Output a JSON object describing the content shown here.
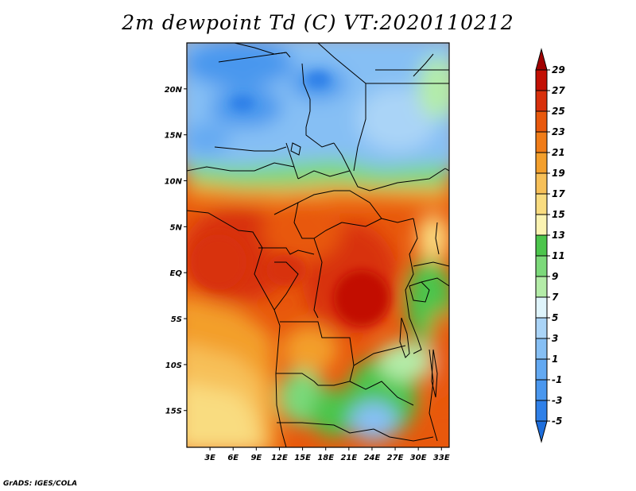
{
  "title": "2m dewpoint Td (C) VT:2020110212",
  "credit": "GrADS: IGES/COLA",
  "map": {
    "lon_range": [
      0,
      34
    ],
    "lat_range": [
      -19,
      25
    ],
    "lon_ticks": [
      {
        "lon": 3,
        "label": "3E"
      },
      {
        "lon": 6,
        "label": "6E"
      },
      {
        "lon": 9,
        "label": "9E"
      },
      {
        "lon": 12,
        "label": "12E"
      },
      {
        "lon": 15,
        "label": "15E"
      },
      {
        "lon": 18,
        "label": "18E"
      },
      {
        "lon": 21,
        "label": "21E"
      },
      {
        "lon": 24,
        "label": "24E"
      },
      {
        "lon": 27,
        "label": "27E"
      },
      {
        "lon": 30,
        "label": "30E"
      },
      {
        "lon": 33,
        "label": "33E"
      }
    ],
    "lat_ticks": [
      {
        "lat": 20,
        "label": "20N"
      },
      {
        "lat": 15,
        "label": "15N"
      },
      {
        "lat": 10,
        "label": "10N"
      },
      {
        "lat": 5,
        "label": "5N"
      },
      {
        "lat": 0,
        "label": "EQ"
      },
      {
        "lat": -5,
        "label": "5S"
      },
      {
        "lat": -10,
        "label": "10S"
      },
      {
        "lat": -15,
        "label": "15S"
      }
    ]
  },
  "colorbar": {
    "levels": [
      "-5",
      "-3",
      "-1",
      "1",
      "3",
      "5",
      "7",
      "9",
      "11",
      "13",
      "15",
      "17",
      "19",
      "21",
      "23",
      "25",
      "27",
      "29"
    ],
    "colors": [
      "#1e6edc",
      "#2f80e8",
      "#4a97ee",
      "#63a9f2",
      "#86bff4",
      "#aad4f7",
      "#dff4fb",
      "#b4eca8",
      "#7cd97a",
      "#4cc54c",
      "#fbf3b2",
      "#f9dc80",
      "#f7c058",
      "#f39f2c",
      "#f07c18",
      "#e8580c",
      "#d8300c",
      "#c21004",
      "#a00000"
    ]
  }
}
